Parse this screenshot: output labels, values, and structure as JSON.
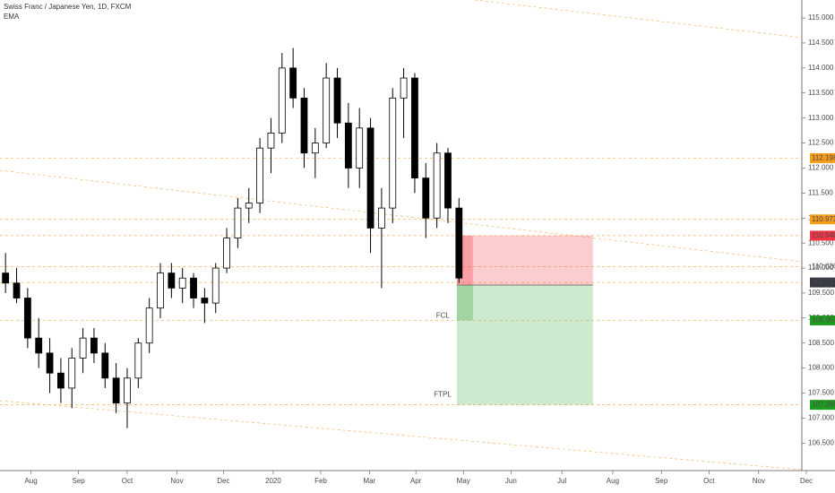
{
  "chart_data": {
    "type": "candlestick",
    "title": "Swiss Franc / Japanese Yen, 1D, FXCM",
    "indicator": "EMA",
    "x": [
      0,
      1,
      2,
      3,
      4,
      5,
      6,
      7,
      8,
      9,
      10,
      11,
      12,
      13,
      14,
      15,
      16,
      17,
      18,
      19,
      20,
      21,
      22,
      23,
      24,
      25,
      26,
      27,
      28,
      29,
      30,
      31,
      32,
      33,
      34,
      35,
      36,
      37,
      38,
      39,
      40,
      41
    ],
    "open": [
      109.9,
      109.7,
      109.4,
      108.6,
      108.3,
      107.9,
      107.6,
      108.2,
      108.6,
      108.3,
      107.8,
      107.3,
      107.8,
      108.5,
      109.2,
      109.9,
      109.6,
      109.8,
      109.4,
      109.3,
      110.0,
      110.6,
      111.2,
      111.3,
      112.4,
      112.7,
      114.0,
      113.4,
      112.3,
      112.5,
      113.8,
      112.9,
      112.0,
      112.8,
      110.8,
      111.2,
      113.4,
      113.8,
      111.8,
      111.0,
      112.3,
      111.2
    ],
    "high": [
      110.3,
      110.0,
      109.6,
      109.0,
      108.6,
      108.2,
      108.4,
      108.8,
      108.8,
      108.5,
      108.1,
      108.0,
      108.6,
      109.4,
      110.1,
      110.1,
      110.0,
      109.9,
      109.6,
      110.1,
      110.8,
      111.4,
      111.6,
      112.6,
      113.0,
      114.3,
      114.4,
      113.6,
      112.8,
      114.1,
      114.0,
      113.3,
      113.2,
      113.0,
      111.6,
      113.6,
      114.0,
      113.9,
      112.1,
      112.5,
      112.4,
      111.4
    ],
    "low": [
      109.5,
      109.3,
      108.4,
      108.0,
      107.5,
      107.3,
      107.2,
      107.9,
      108.1,
      107.6,
      107.1,
      106.8,
      107.6,
      108.3,
      109.0,
      109.4,
      109.3,
      109.2,
      108.9,
      109.1,
      109.9,
      110.4,
      110.9,
      111.1,
      111.9,
      112.5,
      113.2,
      112.0,
      111.8,
      112.4,
      112.6,
      111.6,
      111.6,
      110.3,
      109.6,
      110.9,
      112.6,
      111.5,
      110.6,
      110.8,
      110.9,
      109.7
    ],
    "close": [
      109.7,
      109.4,
      108.6,
      108.3,
      107.9,
      107.6,
      108.2,
      108.6,
      108.3,
      107.8,
      107.3,
      107.8,
      108.5,
      109.2,
      109.9,
      109.6,
      109.8,
      109.4,
      109.3,
      110.0,
      110.6,
      111.2,
      111.3,
      112.4,
      112.7,
      114.0,
      113.4,
      112.3,
      112.5,
      113.8,
      112.9,
      112.0,
      112.8,
      110.8,
      111.2,
      113.4,
      113.8,
      111.8,
      111.0,
      112.3,
      111.2,
      109.8
    ],
    "up_color": "#ffffff",
    "down_color": "#000000",
    "xlim": [
      -0.5,
      72
    ],
    "xticks": [
      {
        "value": 2.3,
        "label": "Aug"
      },
      {
        "value": 6.6,
        "label": "Sep"
      },
      {
        "value": 11.0,
        "label": "Oct"
      },
      {
        "value": 15.5,
        "label": "Nov"
      },
      {
        "value": 19.7,
        "label": "Dec"
      },
      {
        "value": 24.2,
        "label": "2020"
      },
      {
        "value": 28.5,
        "label": "Feb"
      },
      {
        "value": 32.9,
        "label": "Mar"
      },
      {
        "value": 37.1,
        "label": "Apr"
      },
      {
        "value": 41.4,
        "label": "May"
      },
      {
        "value": 45.7,
        "label": "Jun"
      },
      {
        "value": 50.3,
        "label": "Jul"
      },
      {
        "value": 54.9,
        "label": "Aug"
      },
      {
        "value": 59.3,
        "label": "Sep"
      },
      {
        "value": 63.6,
        "label": "Oct"
      },
      {
        "value": 68.1,
        "label": "Nov"
      },
      {
        "value": 72.4,
        "label": "Dec"
      }
    ],
    "ylim": [
      105.95,
      115.36
    ],
    "yticks": [
      {
        "value": 106.5,
        "label": "106.500"
      },
      {
        "value": 107,
        "label": "107.000"
      },
      {
        "value": 107.5,
        "label": "107.500"
      },
      {
        "value": 108,
        "label": "108.000"
      },
      {
        "value": 108.5,
        "label": "108.500"
      },
      {
        "value": 109,
        "label": "109.000"
      },
      {
        "value": 109.5,
        "label": "109.500"
      },
      {
        "value": 110,
        "label": "110.000"
      },
      {
        "value": 110.5,
        "label": "110.500"
      },
      {
        "value": 111,
        "label": "111.000"
      },
      {
        "value": 111.5,
        "label": "111.500"
      },
      {
        "value": 112,
        "label": "112.000"
      },
      {
        "value": 112.5,
        "label": "112.500"
      },
      {
        "value": 113,
        "label": "113.000"
      },
      {
        "value": 113.5,
        "label": "113.500"
      },
      {
        "value": 114,
        "label": "114.000"
      },
      {
        "value": 114.5,
        "label": "114.500"
      },
      {
        "value": 115,
        "label": "115.000"
      }
    ],
    "levels": [
      {
        "value": 112.198,
        "color": "#f59c1a"
      },
      {
        "value": 110.973,
        "color": "#f59c1a"
      },
      {
        "value": 110.648,
        "color": "#f23645"
      },
      {
        "value": 110.026,
        "color": null
      },
      {
        "value": 109.712,
        "color": "#363a45"
      },
      {
        "value": 108.953,
        "color": "#1e9e1e"
      },
      {
        "value": 107.265,
        "color": "#1e9e1e"
      }
    ],
    "position": {
      "x_range": [
        40.8,
        53.1
      ],
      "stop": 110.648,
      "entry": 109.66,
      "partial_target": 108.953,
      "target": 107.265,
      "partial_label": "FCL",
      "target_label": "FTPL"
    }
  }
}
